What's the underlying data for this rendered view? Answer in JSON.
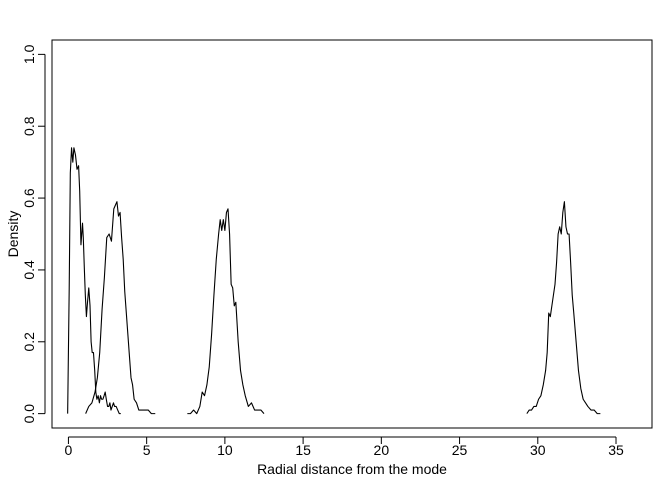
{
  "chart_data": {
    "type": "line",
    "title": "",
    "xlabel": "Radial distance from the mode",
    "ylabel": "Density",
    "xlim": [
      -1.05,
      37.3
    ],
    "ylim": [
      -0.04,
      1.04
    ],
    "x_ticks": [
      0,
      5,
      10,
      15,
      20,
      25,
      30,
      35
    ],
    "x_tick_labels": [
      "0",
      "5",
      "10",
      "15",
      "20",
      "25",
      "30",
      "35"
    ],
    "y_ticks": [
      0.0,
      0.2,
      0.4,
      0.6,
      0.8,
      1.0
    ],
    "y_tick_labels": [
      "0.0",
      "0.2",
      "0.4",
      "0.6",
      "0.8",
      "1.0"
    ],
    "grid": false,
    "legend": "none",
    "line_color": "#000000",
    "series": [
      {
        "x": [
          -0.05,
          0.05,
          0.12,
          0.2,
          0.28,
          0.35,
          0.45,
          0.55,
          0.65,
          0.72,
          0.8,
          0.85,
          0.9,
          0.95,
          1.02,
          1.08,
          1.15,
          1.22,
          1.3,
          1.38,
          1.45,
          1.52,
          1.6,
          1.68,
          1.75,
          1.82,
          1.9,
          1.98,
          2.05,
          2.12,
          2.2,
          2.28,
          2.35,
          2.42,
          2.5,
          2.58,
          2.65,
          2.72,
          2.8,
          2.88,
          2.95,
          3.05,
          3.15,
          3.25,
          3.35
        ],
        "y": [
          0.0,
          0.35,
          0.67,
          0.74,
          0.7,
          0.74,
          0.72,
          0.68,
          0.69,
          0.62,
          0.47,
          0.5,
          0.53,
          0.49,
          0.4,
          0.33,
          0.27,
          0.31,
          0.35,
          0.3,
          0.2,
          0.17,
          0.17,
          0.12,
          0.06,
          0.04,
          0.05,
          0.03,
          0.05,
          0.04,
          0.04,
          0.05,
          0.06,
          0.04,
          0.02,
          0.02,
          0.03,
          0.01,
          0.02,
          0.03,
          0.02,
          0.02,
          0.01,
          0.0,
          0.0
        ]
      },
      {
        "x": [
          1.1,
          1.3,
          1.5,
          1.7,
          1.85,
          2.0,
          2.15,
          2.3,
          2.45,
          2.6,
          2.75,
          2.9,
          3.0,
          3.1,
          3.2,
          3.3,
          3.4,
          3.5,
          3.6,
          3.7,
          3.8,
          3.9,
          4.0,
          4.1,
          4.2,
          4.35,
          4.5,
          4.7,
          4.9,
          5.1,
          5.3,
          5.55
        ],
        "y": [
          0.0,
          0.02,
          0.03,
          0.06,
          0.1,
          0.17,
          0.29,
          0.38,
          0.49,
          0.5,
          0.48,
          0.57,
          0.58,
          0.59,
          0.55,
          0.56,
          0.49,
          0.43,
          0.34,
          0.28,
          0.22,
          0.16,
          0.1,
          0.08,
          0.04,
          0.03,
          0.01,
          0.01,
          0.01,
          0.01,
          0.0,
          0.0
        ]
      },
      {
        "x": [
          7.6,
          7.8,
          8.0,
          8.2,
          8.4,
          8.55,
          8.7,
          8.85,
          9.0,
          9.15,
          9.3,
          9.45,
          9.6,
          9.7,
          9.8,
          9.9,
          10.0,
          10.1,
          10.2,
          10.3,
          10.4,
          10.5,
          10.6,
          10.7,
          10.85,
          11.0,
          11.15,
          11.3,
          11.5,
          11.7,
          11.9,
          12.1,
          12.3,
          12.5
        ],
        "y": [
          0.0,
          0.0,
          0.01,
          0.0,
          0.02,
          0.06,
          0.05,
          0.08,
          0.13,
          0.22,
          0.33,
          0.43,
          0.5,
          0.54,
          0.51,
          0.54,
          0.51,
          0.56,
          0.57,
          0.5,
          0.36,
          0.35,
          0.3,
          0.31,
          0.2,
          0.12,
          0.08,
          0.05,
          0.02,
          0.03,
          0.01,
          0.01,
          0.01,
          0.0
        ]
      },
      {
        "x": [
          29.3,
          29.45,
          29.6,
          29.75,
          29.9,
          30.05,
          30.2,
          30.35,
          30.5,
          30.6,
          30.7,
          30.8,
          30.9,
          31.0,
          31.1,
          31.2,
          31.3,
          31.4,
          31.5,
          31.6,
          31.7,
          31.8,
          31.9,
          32.0,
          32.1,
          32.2,
          32.3,
          32.45,
          32.6,
          32.75,
          32.9,
          33.05,
          33.2,
          33.4,
          33.6,
          33.8,
          34.0
        ],
        "y": [
          0.0,
          0.01,
          0.01,
          0.02,
          0.02,
          0.04,
          0.05,
          0.08,
          0.12,
          0.17,
          0.28,
          0.27,
          0.3,
          0.33,
          0.36,
          0.42,
          0.5,
          0.52,
          0.5,
          0.56,
          0.59,
          0.52,
          0.5,
          0.5,
          0.42,
          0.33,
          0.28,
          0.2,
          0.12,
          0.07,
          0.04,
          0.03,
          0.02,
          0.01,
          0.01,
          0.0,
          0.0
        ]
      }
    ]
  }
}
